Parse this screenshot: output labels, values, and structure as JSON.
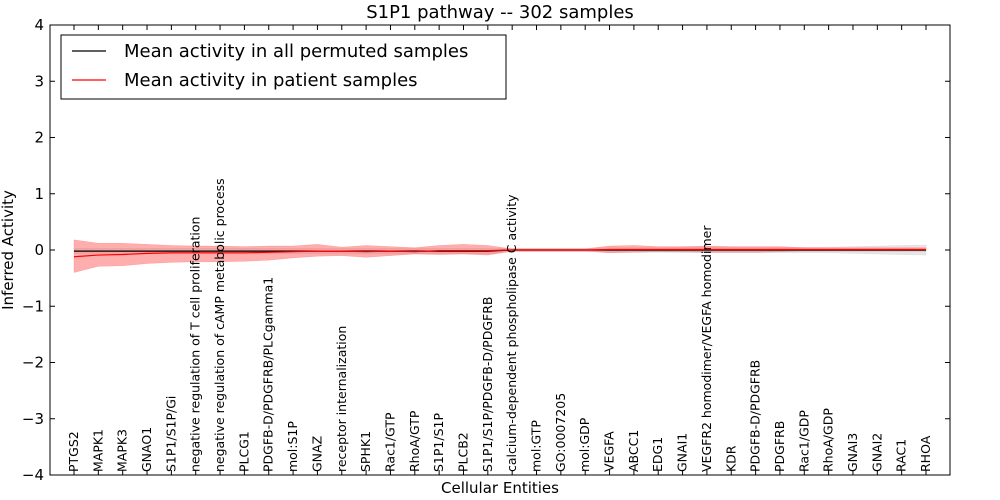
{
  "chart_data": {
    "type": "line",
    "title": "S1P1 pathway -- 302 samples",
    "xlabel": "Cellular Entities",
    "ylabel": "Inferred Activity",
    "ylim": [
      -4,
      4
    ],
    "yticks": [
      -4,
      -3,
      -2,
      -1,
      0,
      1,
      2,
      3,
      4
    ],
    "ytick_labels": [
      "−4",
      "−3",
      "−2",
      "−1",
      "0",
      "1",
      "2",
      "3",
      "4"
    ],
    "grid": false,
    "legend_position": "top-left",
    "categories": [
      "PTGS2",
      "MAPK1",
      "MAPK3",
      "GNAO1",
      "S1P1/S1P/Gi",
      "negative regulation of T cell proliferation",
      "negative regulation of cAMP metabolic process",
      "PLCG1",
      "PDGFB-D/PDGFRB/PLCgamma1",
      "mol:S1P",
      "GNAZ",
      "receptor internalization",
      "SPHK1",
      "Rac1/GTP",
      "RhoA/GTP",
      "S1P1/S1P",
      "PLCB2",
      "S1P1/S1P/PDGFB-D/PDGFRB",
      "calcium-dependent phospholipase C activity",
      "mol:GTP",
      "GO:0007205",
      "mol:GDP",
      "VEGFA",
      "ABCC1",
      "EDG1",
      "GNAI1",
      "VEGFR2 homodimer/VEGFA homodimer",
      "KDR",
      "PDGFB-D/PDGFRB",
      "PDGFRB",
      "Rac1/GDP",
      "RhoA/GDP",
      "GNAI3",
      "GNAI2",
      "RAC1",
      "RHOA"
    ],
    "series": [
      {
        "name": "Mean activity in all permuted samples",
        "color": "#000000",
        "band_color": "#c8c8c8",
        "values": [
          -0.02,
          -0.02,
          -0.02,
          -0.02,
          -0.02,
          -0.02,
          -0.02,
          -0.02,
          -0.02,
          -0.02,
          -0.02,
          -0.02,
          -0.02,
          -0.02,
          -0.02,
          -0.02,
          -0.02,
          -0.02,
          0.0,
          0.0,
          0.0,
          0.0,
          0.0,
          0.0,
          0.0,
          0.0,
          0.0,
          0.0,
          0.0,
          0.0,
          0.0,
          0.0,
          0.0,
          0.0,
          0.0,
          0.0
        ],
        "upper": [
          0.03,
          0.03,
          0.03,
          0.03,
          0.03,
          0.03,
          0.03,
          0.03,
          0.03,
          0.03,
          0.03,
          0.03,
          0.03,
          0.03,
          0.03,
          0.03,
          0.03,
          0.03,
          0.03,
          0.03,
          0.03,
          0.03,
          0.04,
          0.04,
          0.04,
          0.05,
          0.05,
          0.05,
          0.05,
          0.05,
          0.05,
          0.05,
          0.06,
          0.07,
          0.08,
          0.09
        ],
        "lower": [
          -0.07,
          -0.07,
          -0.07,
          -0.07,
          -0.07,
          -0.07,
          -0.07,
          -0.07,
          -0.07,
          -0.07,
          -0.07,
          -0.07,
          -0.07,
          -0.07,
          -0.07,
          -0.07,
          -0.07,
          -0.07,
          -0.03,
          -0.03,
          -0.03,
          -0.03,
          -0.04,
          -0.04,
          -0.04,
          -0.05,
          -0.05,
          -0.05,
          -0.05,
          -0.05,
          -0.05,
          -0.05,
          -0.06,
          -0.07,
          -0.08,
          -0.09
        ]
      },
      {
        "name": "Mean activity in patient samples",
        "color": "#ff0000",
        "band_color": "#ff6b6b",
        "values": [
          -0.12,
          -0.09,
          -0.08,
          -0.06,
          -0.05,
          -0.05,
          -0.05,
          -0.05,
          -0.04,
          -0.03,
          -0.02,
          -0.02,
          -0.03,
          -0.02,
          -0.03,
          -0.01,
          -0.01,
          -0.01,
          0.0,
          0.0,
          0.0,
          0.0,
          0.01,
          0.01,
          0.01,
          0.01,
          0.01,
          0.01,
          0.01,
          0.01,
          0.01,
          0.01,
          0.01,
          0.01,
          0.01,
          0.01
        ],
        "upper": [
          0.18,
          0.12,
          0.12,
          0.1,
          0.08,
          0.07,
          0.07,
          0.06,
          0.07,
          0.07,
          0.1,
          0.05,
          0.08,
          0.06,
          0.04,
          0.08,
          0.1,
          0.08,
          0.02,
          0.02,
          0.02,
          0.02,
          0.07,
          0.08,
          0.06,
          0.06,
          0.07,
          0.06,
          0.06,
          0.06,
          0.04,
          0.04,
          0.04,
          0.04,
          0.04,
          0.04
        ],
        "lower": [
          -0.4,
          -0.29,
          -0.28,
          -0.24,
          -0.22,
          -0.21,
          -0.21,
          -0.2,
          -0.18,
          -0.14,
          -0.11,
          -0.1,
          -0.13,
          -0.1,
          -0.07,
          -0.08,
          -0.07,
          -0.09,
          -0.02,
          -0.02,
          -0.02,
          -0.02,
          -0.05,
          -0.04,
          -0.03,
          -0.03,
          -0.04,
          -0.04,
          -0.04,
          -0.03,
          -0.02,
          -0.02,
          -0.02,
          -0.02,
          -0.02,
          -0.02
        ]
      }
    ]
  }
}
